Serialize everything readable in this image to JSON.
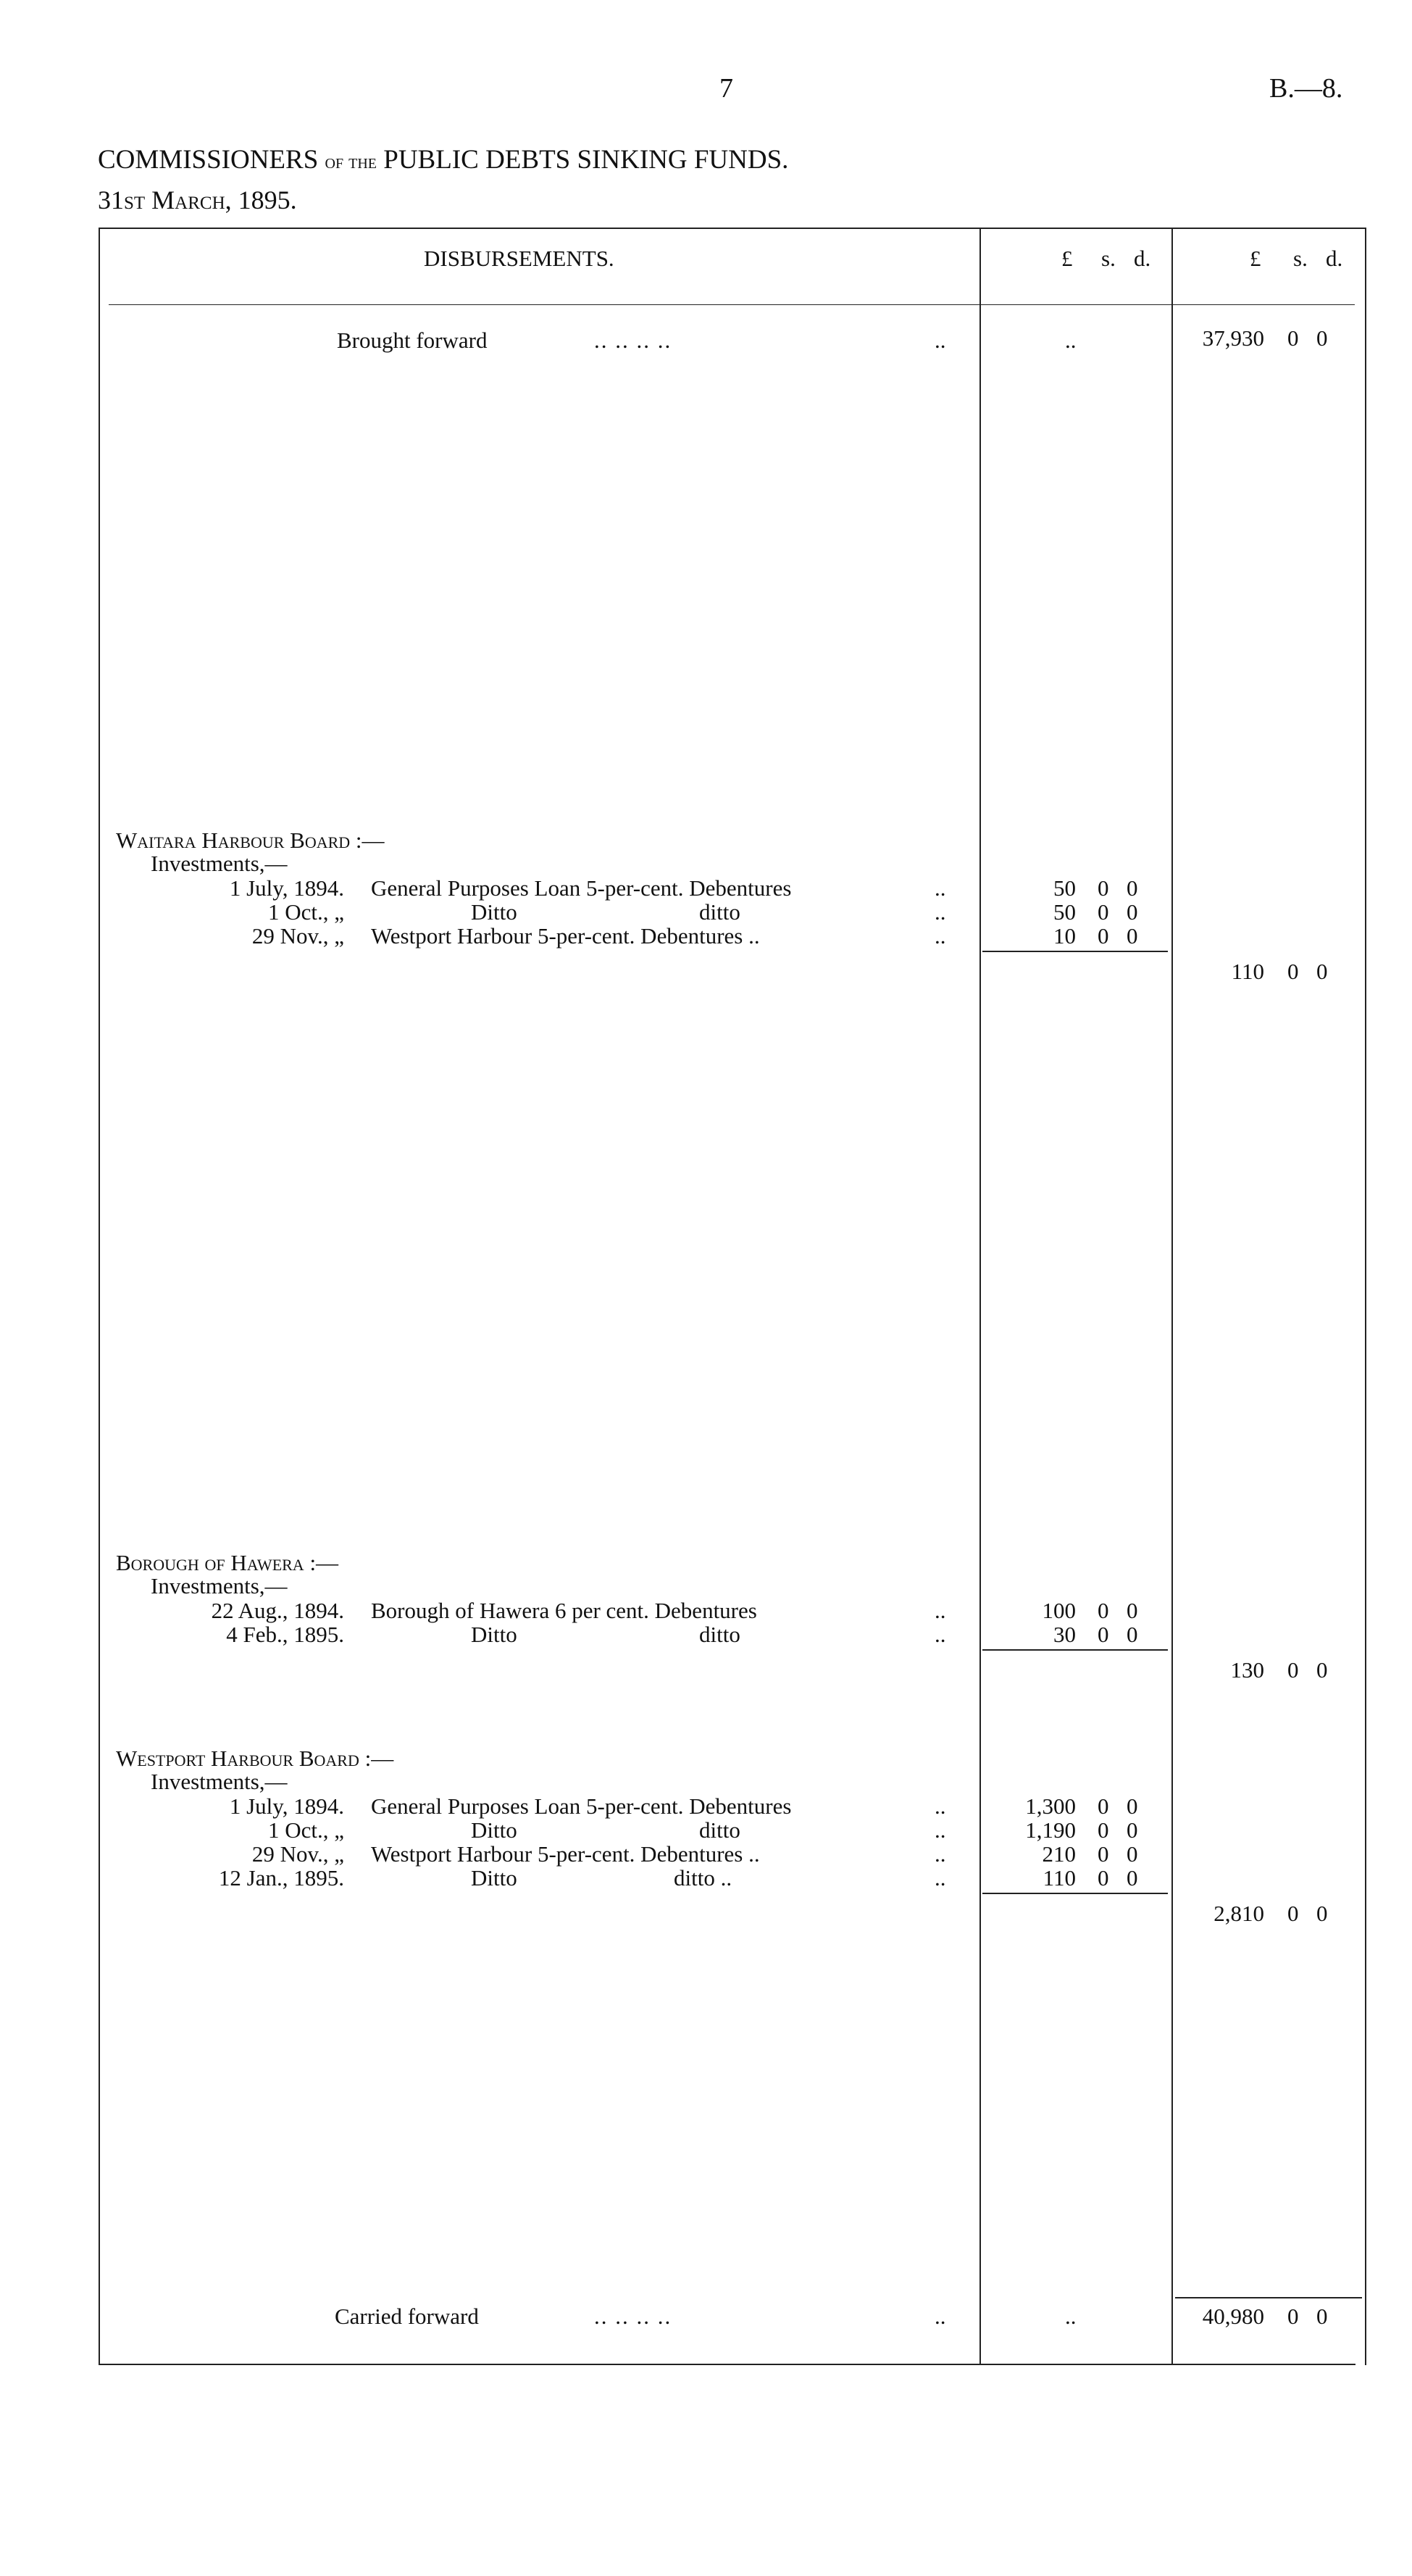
{
  "header": {
    "page_number": "7",
    "reference": "B.—8.",
    "title_main": "COMMISSIONERS",
    "title_of": "of the",
    "title_rest": "PUBLIC DEBTS SINKING FUNDS.",
    "date": "31st March, 1895."
  },
  "table": {
    "col_heading": "DISBURSEMENTS.",
    "currency_heads": {
      "pounds": "£",
      "shillings": "s.",
      "pence": "d."
    },
    "brought_forward": {
      "label": "Brought forward",
      "leaders": "..          ..          ..          ..",
      "inner": "..",
      "total": "37,930",
      "s": "0",
      "d": "0"
    },
    "sections": [
      {
        "name": "Waitara Harbour Board :—",
        "sub": "Investments,—",
        "rows": [
          {
            "date": "1 July, 1894.",
            "desc": "General Purposes Loan 5-per-cent. Debentures",
            "desc2": "",
            "amount": "50",
            "s": "0",
            "d": "0"
          },
          {
            "date": "1 Oct.,   „",
            "desc": "Ditto",
            "desc2": "ditto",
            "amount": "50",
            "s": "0",
            "d": "0"
          },
          {
            "date": "29 Nov.,   „",
            "desc": "Westport Harbour 5-per-cent. Debentures ..",
            "desc2": "",
            "amount": "10",
            "s": "0",
            "d": "0"
          }
        ],
        "total": "110",
        "s": "0",
        "d": "0"
      },
      {
        "name": "Borough of Hawera :—",
        "sub": "Investments,—",
        "rows": [
          {
            "date": "22 Aug., 1894.",
            "desc": "Borough of Hawera 6 per cent. Debentures",
            "desc2": "",
            "amount": "100",
            "s": "0",
            "d": "0"
          },
          {
            "date": "4 Feb., 1895.",
            "desc": "Ditto",
            "desc2": "ditto",
            "amount": "30",
            "s": "0",
            "d": "0"
          }
        ],
        "total": "130",
        "s": "0",
        "d": "0"
      },
      {
        "name": "Westport Harbour Board :—",
        "sub": "Investments,—",
        "rows": [
          {
            "date": "1 July, 1894.",
            "desc": "General Purposes Loan 5-per-cent. Debentures",
            "desc2": "",
            "amount": "1,300",
            "s": "0",
            "d": "0"
          },
          {
            "date": "1 Oct.,   „",
            "desc": "Ditto",
            "desc2": "ditto",
            "amount": "1,190",
            "s": "0",
            "d": "0"
          },
          {
            "date": "29 Nov.,   „",
            "desc": "Westport Harbour 5-per-cent. Debentures ..",
            "desc2": "",
            "amount": "210",
            "s": "0",
            "d": "0"
          },
          {
            "date": "12 Jan., 1895.",
            "desc": "Ditto",
            "desc2": "ditto      ..",
            "amount": "110",
            "s": "0",
            "d": "0"
          }
        ],
        "total": "2,810",
        "s": "0",
        "d": "0"
      }
    ],
    "carried_forward": {
      "label": "Carried forward",
      "leaders": "..          ..          ..          ..",
      "inner": "..",
      "total": "40,980",
      "s": "0",
      "d": "0"
    },
    "row_leader": ".."
  }
}
